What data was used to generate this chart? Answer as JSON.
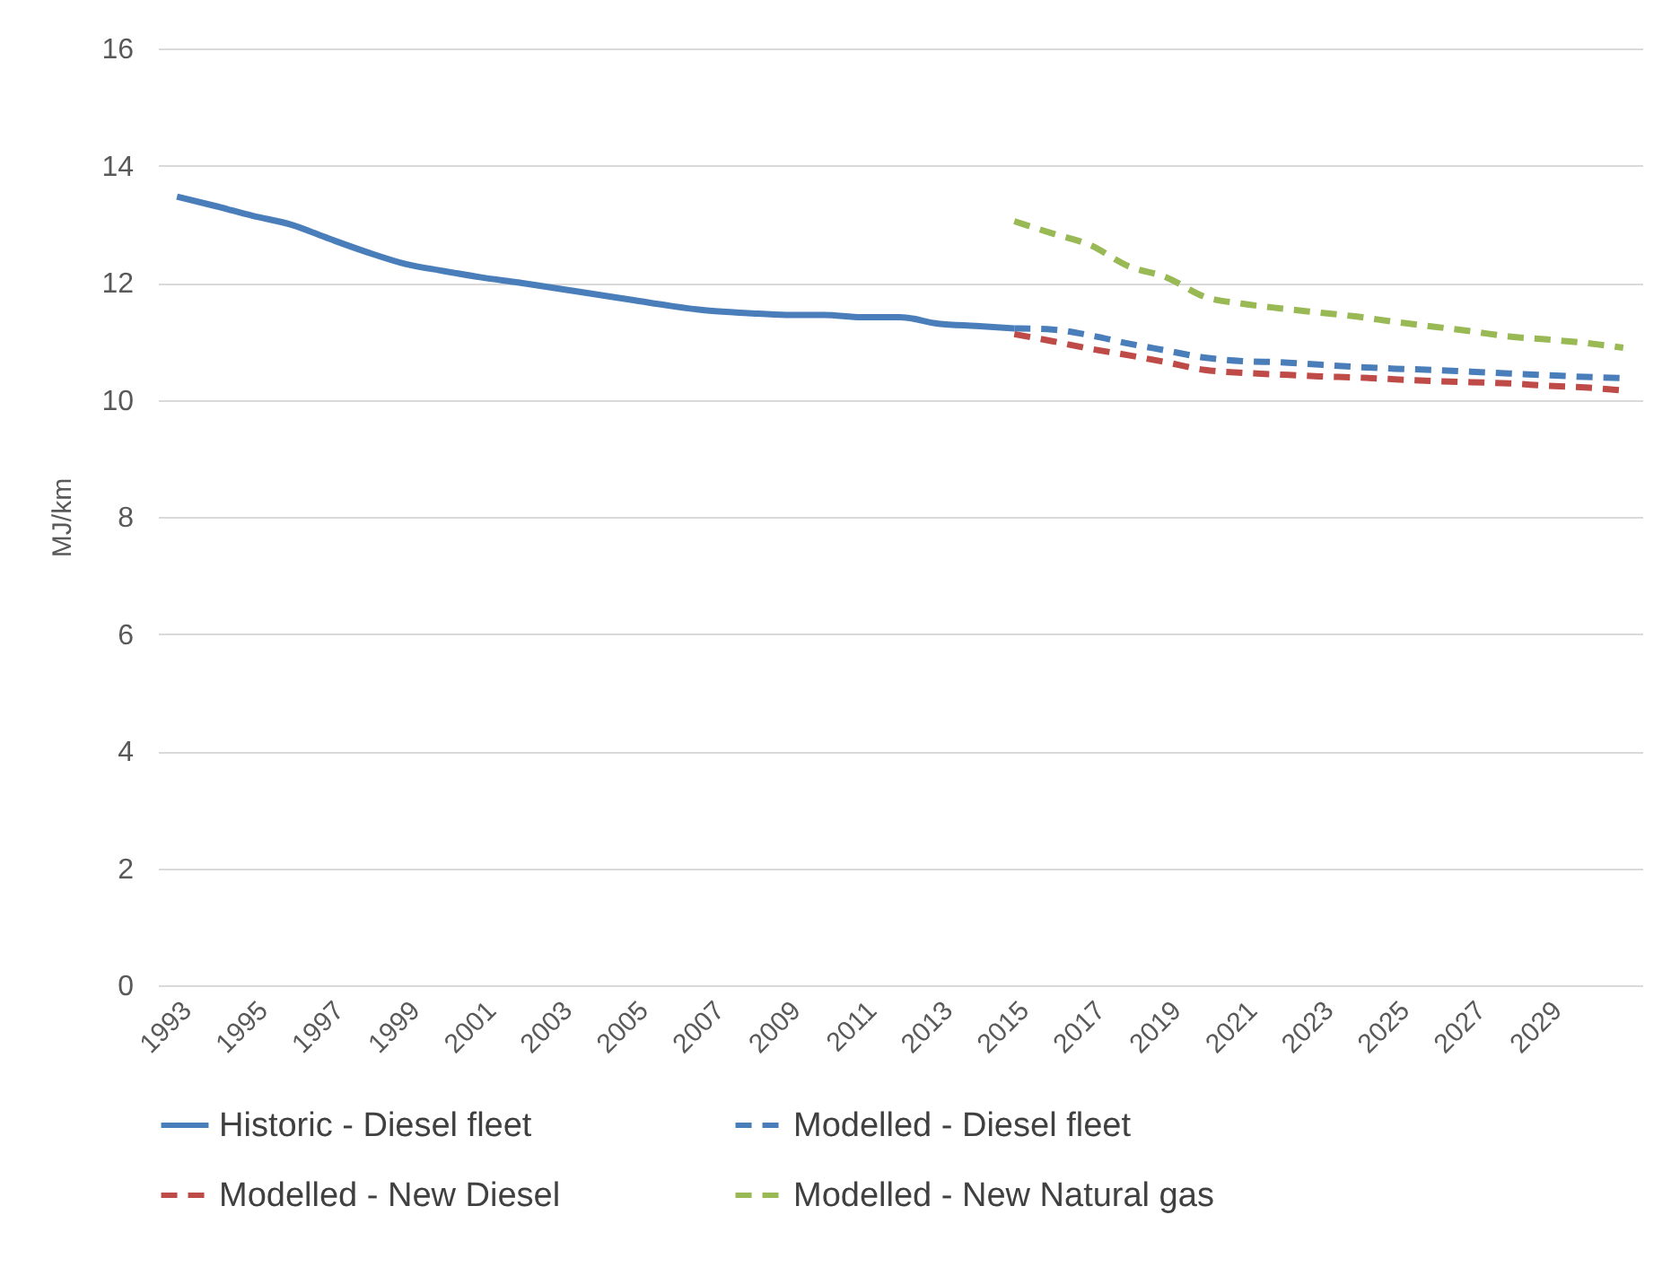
{
  "chart_data": {
    "type": "line",
    "ylabel": "MJ/km",
    "categories": [
      "1993",
      null,
      "1995",
      null,
      "1997",
      null,
      "1999",
      null,
      "2001",
      null,
      "2003",
      null,
      "2005",
      null,
      "2007",
      null,
      "2009",
      null,
      "2011",
      null,
      "2013",
      null,
      "2015",
      null,
      "2017",
      null,
      "2019",
      null,
      "2021",
      null,
      "2023",
      null,
      "2025",
      null,
      "2027",
      null,
      "2029",
      null,
      null
    ],
    "series": [
      {
        "name": "Historic - Diesel fleet",
        "color": "#4a7ebb",
        "line_style": "solid",
        "values": [
          13.47,
          13.31,
          13.14,
          12.99,
          12.75,
          12.52,
          12.32,
          12.2,
          12.09,
          12.0,
          11.9,
          11.8,
          11.7,
          11.6,
          11.52,
          11.48,
          11.45,
          11.45,
          11.41,
          11.41,
          11.3,
          11.26,
          11.22,
          null,
          null,
          null,
          null,
          null,
          null,
          null,
          null,
          null,
          null,
          null,
          null,
          null,
          null,
          null,
          null
        ]
      },
      {
        "name": "Modelled - Diesel fleet",
        "color": "#4a7ebb",
        "line_style": "dashed",
        "values": [
          null,
          null,
          null,
          null,
          null,
          null,
          null,
          null,
          null,
          null,
          null,
          null,
          null,
          null,
          null,
          null,
          null,
          null,
          null,
          null,
          null,
          null,
          11.22,
          11.2,
          11.1,
          10.96,
          10.84,
          10.72,
          10.66,
          10.64,
          10.6,
          10.56,
          10.53,
          10.51,
          10.48,
          10.45,
          10.42,
          10.39,
          10.37
        ]
      },
      {
        "name": "Modelled - New Diesel",
        "color": "#be4b48",
        "line_style": "dashed",
        "values": [
          null,
          null,
          null,
          null,
          null,
          null,
          null,
          null,
          null,
          null,
          null,
          null,
          null,
          null,
          null,
          null,
          null,
          null,
          null,
          null,
          null,
          null,
          11.12,
          11.0,
          10.87,
          10.76,
          10.64,
          10.51,
          10.46,
          10.43,
          10.4,
          10.38,
          10.35,
          10.32,
          10.3,
          10.28,
          10.24,
          10.21,
          10.16
        ]
      },
      {
        "name": "Modelled - New Natural gas",
        "color": "#98b954",
        "line_style": "dashed",
        "values": [
          null,
          null,
          null,
          null,
          null,
          null,
          null,
          null,
          null,
          null,
          null,
          null,
          null,
          null,
          null,
          null,
          null,
          null,
          null,
          null,
          null,
          null,
          13.05,
          12.84,
          12.64,
          12.28,
          12.09,
          11.76,
          11.64,
          11.56,
          11.49,
          11.42,
          11.33,
          11.25,
          11.17,
          11.08,
          11.03,
          10.97,
          10.89
        ]
      }
    ],
    "ylim": [
      0,
      16
    ],
    "yticks": [
      0,
      2,
      4,
      6,
      8,
      10,
      12,
      14,
      16
    ],
    "grid": "y",
    "legend": "bottom"
  }
}
